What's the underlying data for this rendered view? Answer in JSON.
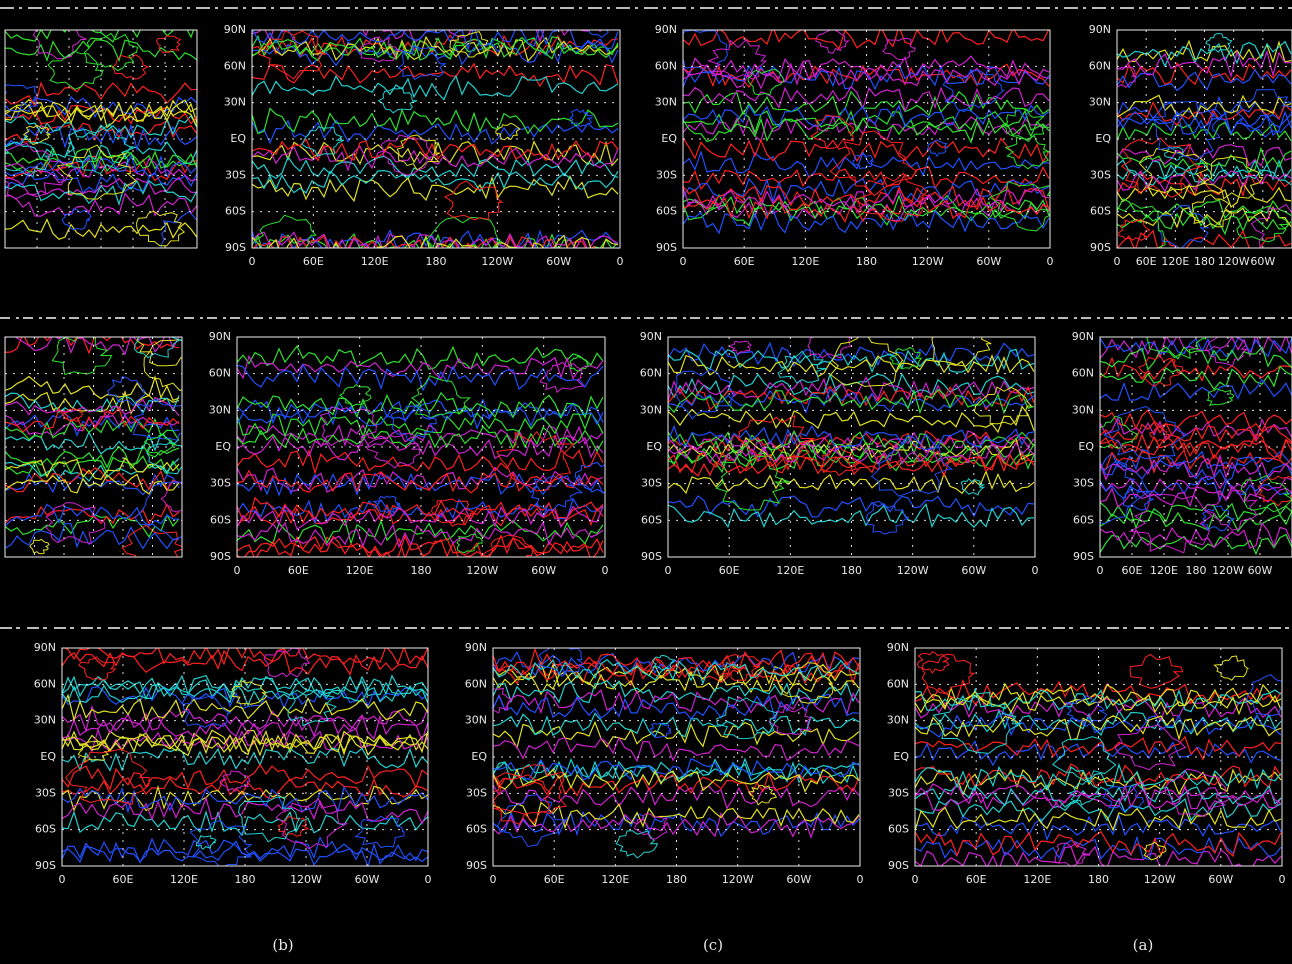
{
  "figure": {
    "lat_labels": [
      "90N",
      "60N",
      "30N",
      "EQ",
      "30S",
      "60S",
      "90S"
    ],
    "lon_labels": [
      "0",
      "60E",
      "120E",
      "180",
      "120W",
      "60W",
      "0"
    ],
    "panel_labels": [
      "(b)",
      "(c)",
      "(a)"
    ]
  }
}
